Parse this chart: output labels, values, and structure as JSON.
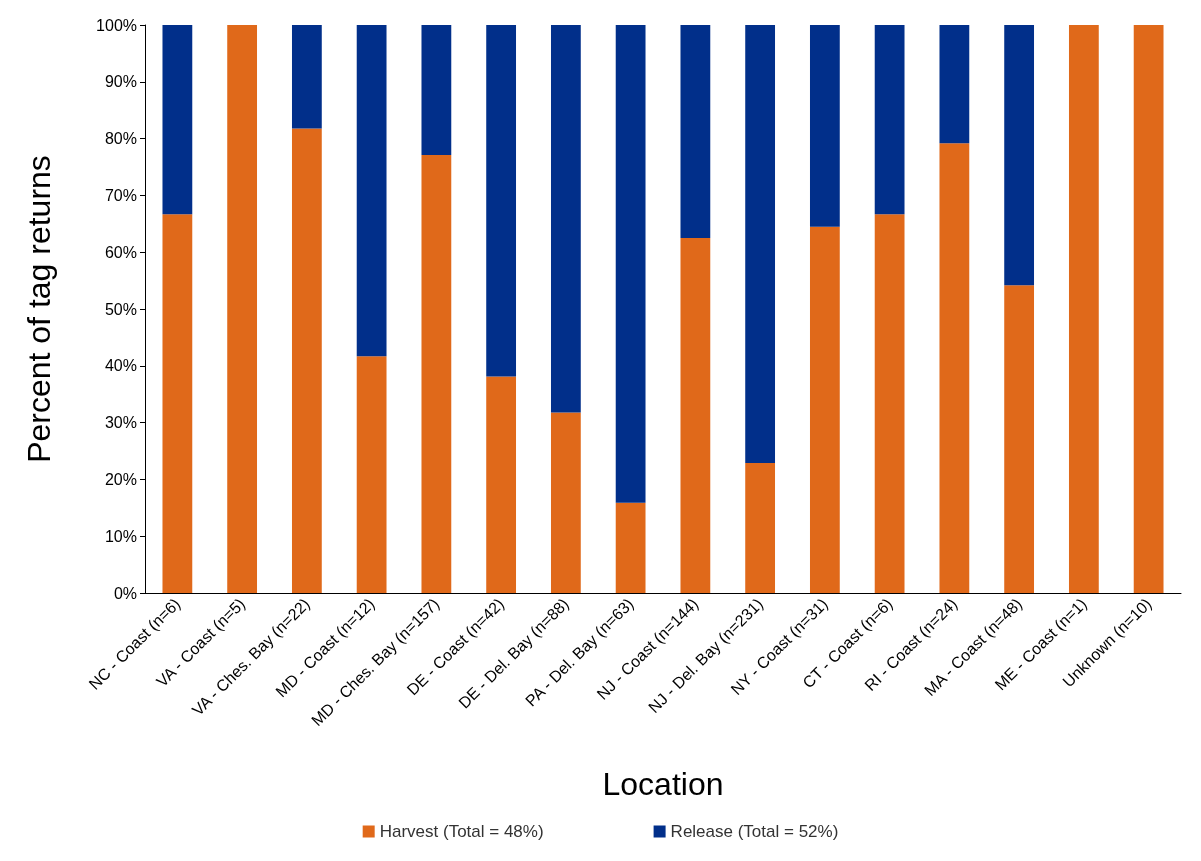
{
  "chart_data": {
    "type": "bar",
    "stacked": true,
    "xlabel": "Location",
    "ylabel": "Percent of tag returns",
    "categories": [
      "NC - Coast (n=6)",
      "VA - Coast (n=5)",
      "VA - Ches. Bay (n=22)",
      "MD - Coast (n=12)",
      "MD - Ches. Bay (n=157)",
      "DE - Coast (n=42)",
      "DE - Del. Bay (n=88)",
      "PA - Del. Bay (n=63)",
      "NJ - Coast (n=144)",
      "NJ - Del. Bay (n=231)",
      "NY - Coast (n=31)",
      "CT - Coast (n=6)",
      "RI - Coast (n=24)",
      "MA - Coast (n=48)",
      "ME - Coast (n=1)",
      "Unknown (n=10)"
    ],
    "series": [
      {
        "name": "Harvest (Total = 48%)",
        "color": "#e0691a",
        "values": [
          66.7,
          100,
          81.8,
          41.7,
          77.1,
          38.1,
          31.8,
          15.9,
          62.5,
          22.9,
          64.5,
          66.7,
          79.2,
          54.2,
          100,
          100
        ]
      },
      {
        "name": "Release (Total = 52%)",
        "color": "#012f8a",
        "values": [
          33.3,
          0,
          18.2,
          58.3,
          22.9,
          61.9,
          68.2,
          84.1,
          37.5,
          77.1,
          35.5,
          33.3,
          20.8,
          45.8,
          0,
          0
        ]
      }
    ],
    "ylim": [
      0,
      100
    ],
    "yticks": [
      {
        "value": 0,
        "label": "0%"
      },
      {
        "value": 10,
        "label": "10%"
      },
      {
        "value": 20,
        "label": "20%"
      },
      {
        "value": 30,
        "label": "30%"
      },
      {
        "value": 40,
        "label": "40%"
      },
      {
        "value": 50,
        "label": "50%"
      },
      {
        "value": 60,
        "label": "60%"
      },
      {
        "value": 70,
        "label": "70%"
      },
      {
        "value": 80,
        "label": "80%"
      },
      {
        "value": 90,
        "label": "90%"
      },
      {
        "value": 100,
        "label": "100%"
      }
    ],
    "grid": false,
    "legend": "bottom"
  }
}
